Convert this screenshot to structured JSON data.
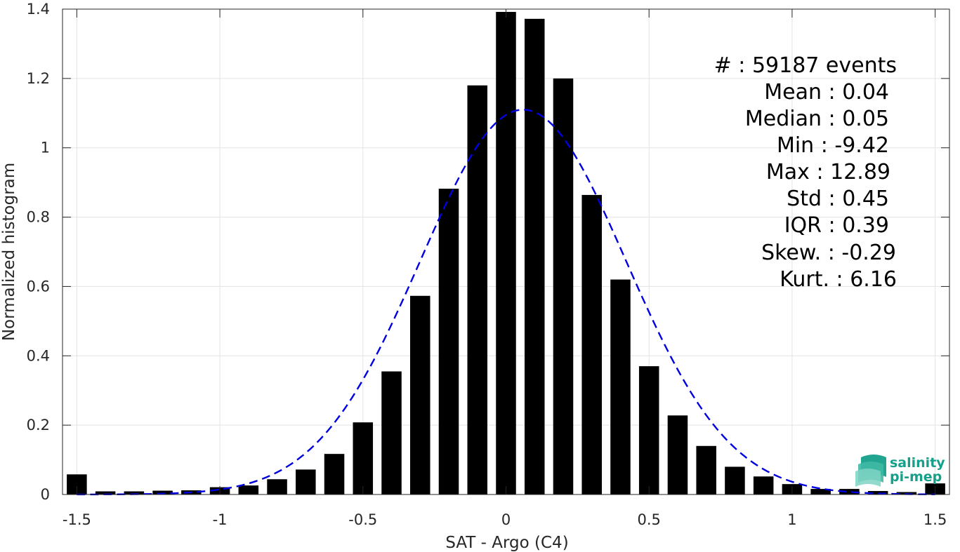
{
  "chart_data": {
    "type": "bar",
    "xlabel": "SAT - Argo (C4)",
    "ylabel": "Normalized histogram",
    "xlim": [
      -1.55,
      1.55
    ],
    "ylim": [
      0,
      1.4
    ],
    "xticks": [
      -1.5,
      -1,
      -0.5,
      0,
      0.5,
      1,
      1.5
    ],
    "xtick_labels": [
      "-1.5",
      "-1",
      "-0.5",
      "0",
      "0.5",
      "1",
      "1.5"
    ],
    "yticks": [
      0,
      0.2,
      0.4,
      0.6,
      0.8,
      1.0,
      1.2,
      1.4
    ],
    "ytick_labels": [
      "0",
      "0.2",
      "0.4",
      "0.6",
      "0.8",
      "1",
      "1.2",
      "1.4"
    ],
    "grid": true,
    "bar_width": 0.07,
    "bars": {
      "x": [
        -1.5,
        -1.4,
        -1.3,
        -1.2,
        -1.1,
        -1.0,
        -0.9,
        -0.8,
        -0.7,
        -0.6,
        -0.5,
        -0.4,
        -0.3,
        -0.2,
        -0.1,
        0.0,
        0.1,
        0.2,
        0.3,
        0.4,
        0.5,
        0.6,
        0.7,
        0.8,
        0.9,
        1.0,
        1.1,
        1.2,
        1.3,
        1.4,
        1.5
      ],
      "values": [
        0.058,
        0.009,
        0.009,
        0.011,
        0.012,
        0.021,
        0.026,
        0.044,
        0.072,
        0.117,
        0.208,
        0.355,
        0.573,
        0.882,
        1.18,
        1.392,
        1.372,
        1.2,
        0.864,
        0.62,
        0.37,
        0.228,
        0.14,
        0.08,
        0.052,
        0.03,
        0.016,
        0.016,
        0.01,
        0.007,
        0.032
      ],
      "color": "#000000"
    },
    "fit": {
      "style": "dashed",
      "color": "#0000e0",
      "mean": 0.06,
      "std": 0.36,
      "peak": 1.11
    }
  },
  "stats": {
    "count": "#  : 59187 events",
    "mean": "Mean : 0.04",
    "median": "Median : 0.05",
    "min": "Min : -9.42",
    "max": "Max : 12.89",
    "std": "Std : 0.45",
    "iqr": "IQR : 0.39",
    "skew": "Skew. : -0.29",
    "kurt": "Kurt. : 6.16"
  },
  "logo": {
    "line1": "salinity",
    "line2": "pi-mep",
    "color": "#16a08a"
  }
}
